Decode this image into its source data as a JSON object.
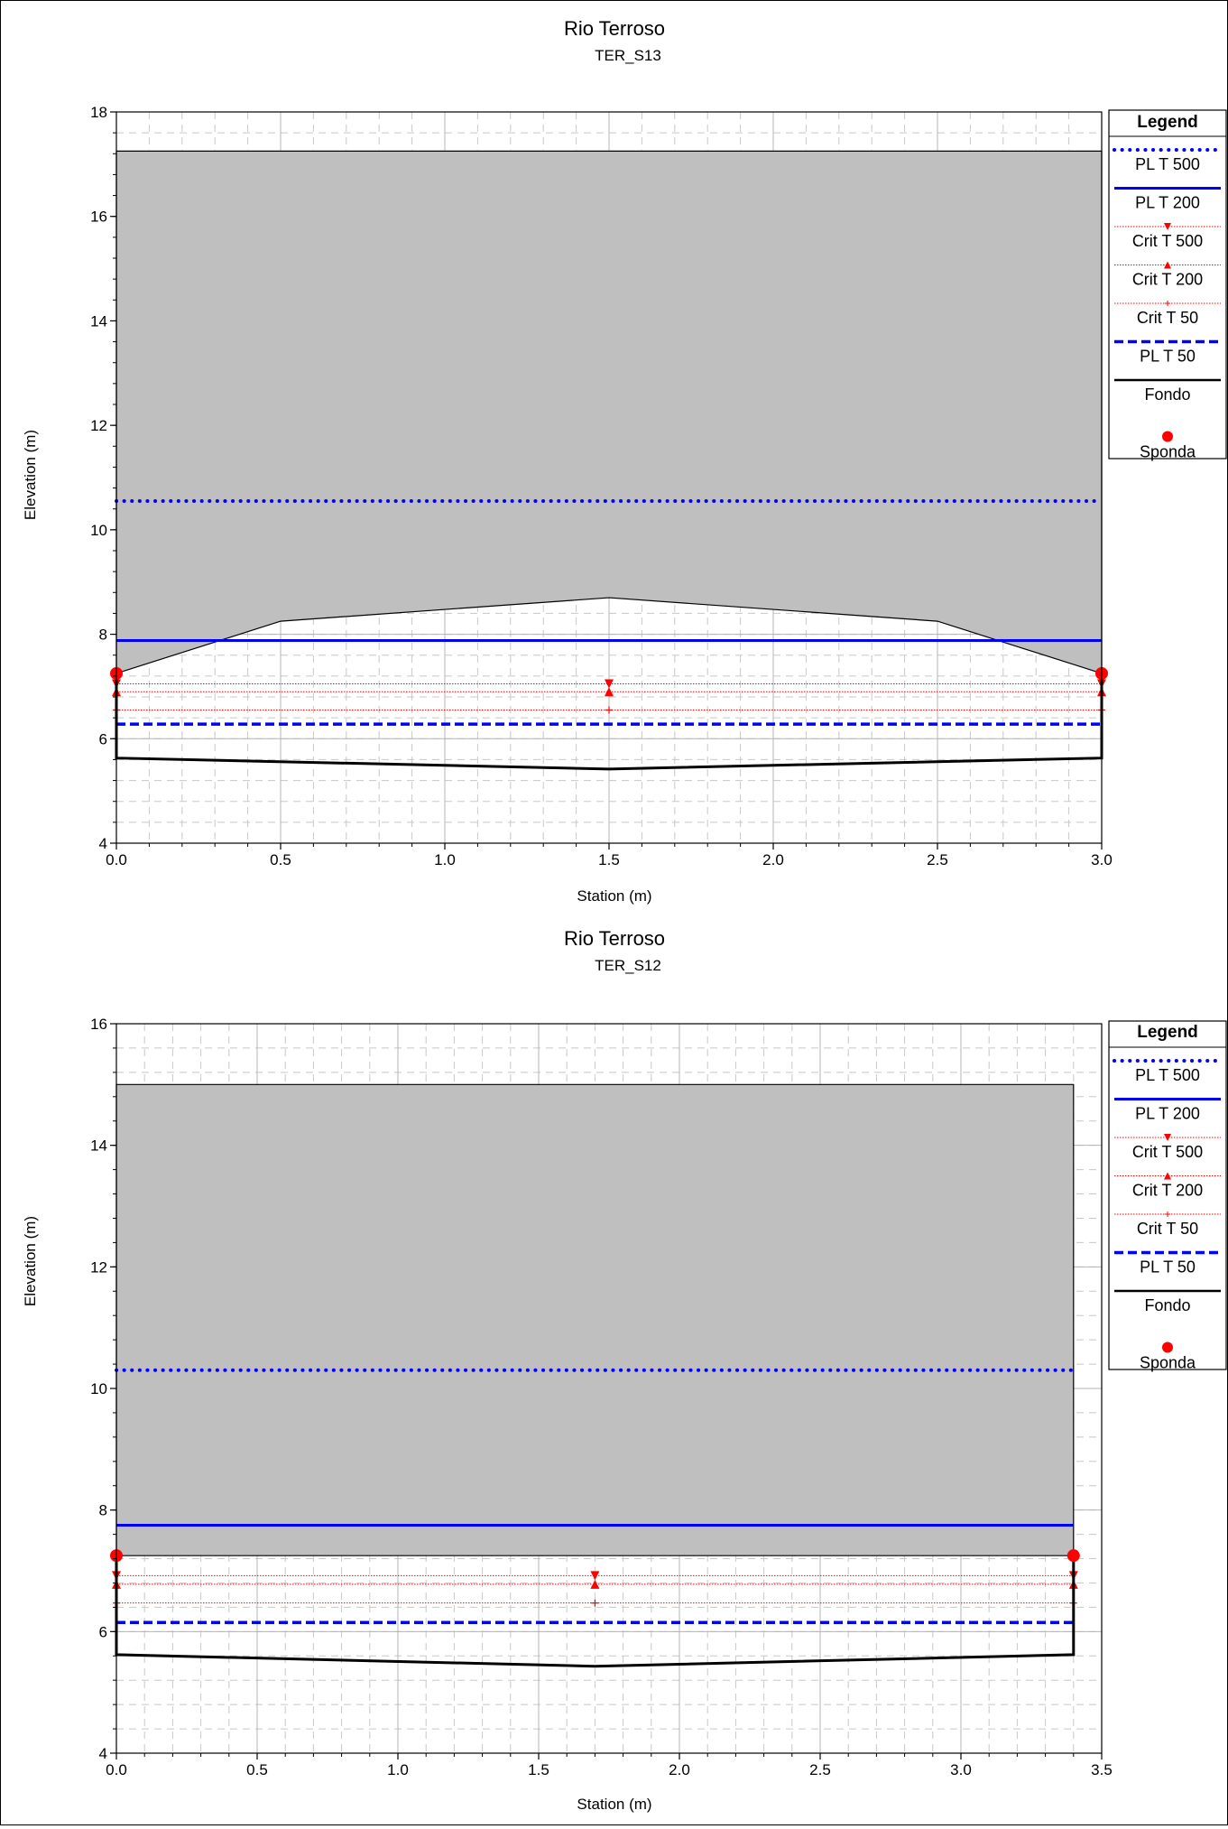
{
  "charts": [
    {
      "chart_data": {
        "type": "line",
        "title": "Rio Terroso",
        "subtitle": "TER_S13",
        "xlabel": "Station (m)",
        "ylabel": "Elevation (m)",
        "xlim": [
          0,
          3.0
        ],
        "ylim": [
          4,
          18
        ],
        "x_ticks": [
          "0.0",
          "0.5",
          "1.0",
          "1.5",
          "2.0",
          "2.5",
          "3.0"
        ],
        "y_ticks": [
          "4",
          "6",
          "8",
          "10",
          "12",
          "14",
          "16",
          "18"
        ],
        "grid": true,
        "legend_position": "right",
        "obstruction": {
          "top": 17.25,
          "bottom_profile": [
            [
              0.0,
              7.25
            ],
            [
              0.5,
              8.25
            ],
            [
              1.5,
              8.7
            ],
            [
              2.5,
              8.25
            ],
            [
              3.0,
              7.25
            ]
          ]
        },
        "series": [
          {
            "name": "PL T 500",
            "style": "dotted",
            "color": "#0000ff",
            "y": 10.55,
            "x": [
              0,
              3.0
            ]
          },
          {
            "name": "PL T 200",
            "style": "solid",
            "color": "#0000ff",
            "y": 7.88,
            "x": [
              0,
              3.0
            ]
          },
          {
            "name": "Crit T 500",
            "style": "dotted-marker-down",
            "color": "#ff0000",
            "y": 7.05,
            "x": [
              0,
              1.5,
              3.0
            ]
          },
          {
            "name": "Crit T 200",
            "style": "dotted-marker-up",
            "color": "#ff0000",
            "y": 6.9,
            "x": [
              0,
              1.5,
              3.0
            ]
          },
          {
            "name": "Crit T 50",
            "style": "dotted-marker-plus",
            "color": "#ff0000",
            "y": 6.55,
            "x": [
              0,
              1.5,
              3.0
            ]
          },
          {
            "name": "PL T 50",
            "style": "dashed",
            "color": "#0000ff",
            "y": 6.28,
            "x": [
              0,
              3.0
            ]
          },
          {
            "name": "Fondo",
            "style": "solid",
            "color": "#000000",
            "x": [
              0.0,
              0.0,
              1.5,
              3.0,
              3.0
            ],
            "y": [
              7.25,
              5.63,
              5.42,
              5.63,
              7.25
            ]
          },
          {
            "name": "Sponda",
            "style": "marker-dot",
            "color": "#ff0000",
            "x": [
              0.0,
              3.0
            ],
            "y": [
              7.25,
              7.25
            ]
          }
        ]
      },
      "legend_title": "Legend"
    },
    {
      "chart_data": {
        "type": "line",
        "title": "Rio Terroso",
        "subtitle": "TER_S12",
        "xlabel": "Station (m)",
        "ylabel": "Elevation (m)",
        "xlim": [
          0,
          3.5
        ],
        "ylim": [
          4,
          16
        ],
        "x_ticks": [
          "0.0",
          "0.5",
          "1.0",
          "1.5",
          "2.0",
          "2.5",
          "3.0",
          "3.5"
        ],
        "y_ticks": [
          "4",
          "6",
          "8",
          "10",
          "12",
          "14",
          "16"
        ],
        "grid": true,
        "legend_position": "right",
        "obstruction": {
          "top": 15.0,
          "bottom_profile": [
            [
              0.0,
              7.25
            ],
            [
              3.4,
              7.25
            ]
          ]
        },
        "series": [
          {
            "name": "PL T 500",
            "style": "dotted",
            "color": "#0000ff",
            "y": 10.3,
            "x": [
              0,
              3.4
            ]
          },
          {
            "name": "PL T 200",
            "style": "solid",
            "color": "#0000ff",
            "y": 7.75,
            "x": [
              0,
              3.4
            ]
          },
          {
            "name": "Crit T 500",
            "style": "dotted-marker-down",
            "color": "#ff0000",
            "y": 6.92,
            "x": [
              0,
              1.7,
              3.4
            ]
          },
          {
            "name": "Crit T 200",
            "style": "dotted-marker-up",
            "color": "#ff0000",
            "y": 6.78,
            "x": [
              0,
              1.7,
              3.4
            ]
          },
          {
            "name": "Crit T 50",
            "style": "dotted-marker-plus",
            "color": "#ff0000",
            "y": 6.47,
            "x": [
              0,
              1.7,
              3.4
            ]
          },
          {
            "name": "PL T 50",
            "style": "dashed",
            "color": "#0000ff",
            "y": 6.15,
            "x": [
              0,
              3.4
            ]
          },
          {
            "name": "Fondo",
            "style": "solid",
            "color": "#000000",
            "x": [
              0.0,
              0.0,
              1.7,
              3.4,
              3.4
            ],
            "y": [
              7.25,
              5.62,
              5.43,
              5.62,
              7.25
            ]
          },
          {
            "name": "Sponda",
            "style": "marker-dot",
            "color": "#ff0000",
            "x": [
              0.0,
              3.4
            ],
            "y": [
              7.25,
              7.25
            ]
          }
        ]
      },
      "legend_title": "Legend"
    }
  ]
}
